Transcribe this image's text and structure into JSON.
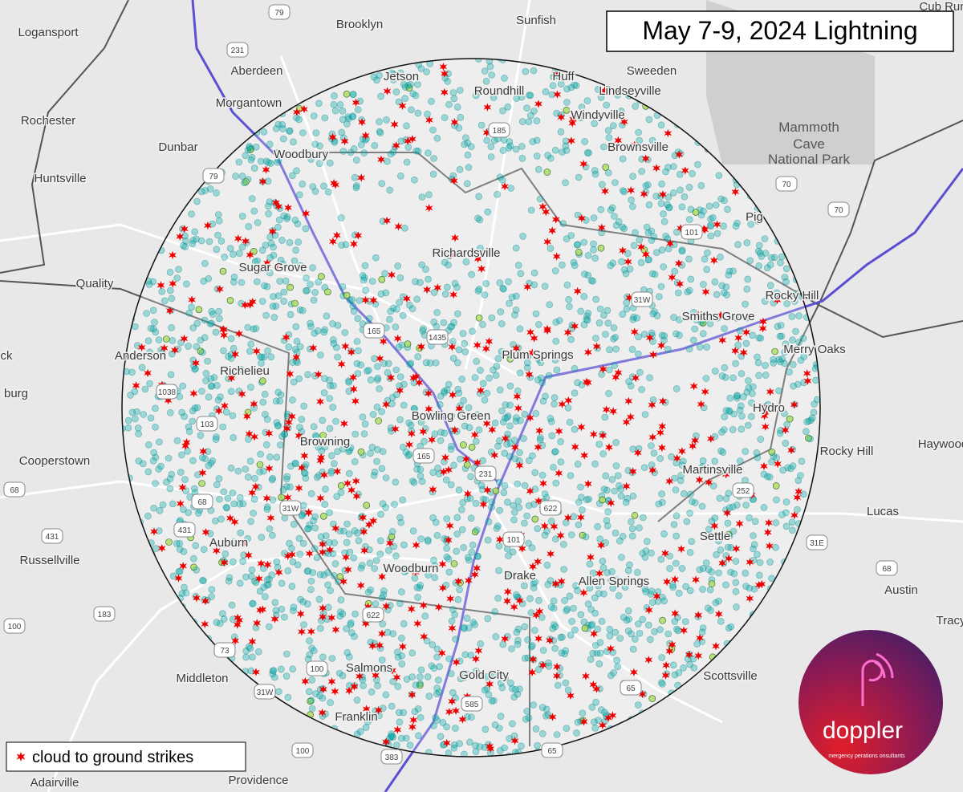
{
  "title": "May 7-9, 2024 Lightning",
  "places": [
    "Logansport",
    "Brooklyn",
    "Sunfish",
    "Cub Run",
    "Aberdeen",
    "Sweeden",
    "Jetson",
    "Roundhill",
    "Huff",
    "Lindseyville",
    "Rochester",
    "Morgantown",
    "Windyville",
    "Dunbar",
    "Woodbury",
    "Brownsville",
    "Huntsville",
    "Pig",
    "Richardsville",
    "Sugar Grove",
    "Quality",
    "Rocky Hill",
    "Smiths Grove",
    "Merry Oaks",
    "Plum Springs",
    "Anderson",
    "Richelieu",
    "ck",
    "burg",
    "Hydro",
    "Bowling Green",
    "Browning",
    "Haywood",
    "Rocky Hill",
    "Cooperstown",
    "Martinsville",
    "Lucas",
    "Settle",
    "Auburn",
    "Russellville",
    "Woodburn",
    "Drake",
    "Allen Springs",
    "Austin",
    "Tracy",
    "Salmons",
    "Middleton",
    "Gold City",
    "Scottsville",
    "Franklin",
    "Providence",
    "Adairville"
  ],
  "park_label": [
    "Mammoth",
    "Cave",
    "National Park"
  ],
  "road_shields": [
    "79",
    "231",
    "185",
    "70",
    "70",
    "101",
    "31W",
    "165",
    "1435",
    "79",
    "1038",
    "103",
    "68",
    "31W",
    "165",
    "231",
    "622",
    "101",
    "252",
    "31E",
    "68",
    "431",
    "68",
    "431",
    "100",
    "183",
    "73",
    "100",
    "31W",
    "622",
    "585",
    "65",
    "383",
    "100",
    "65"
  ],
  "legend": "cloud to ground strikes",
  "logo": {
    "name": "doppler",
    "tagline": "mergency perations onsultants"
  }
}
